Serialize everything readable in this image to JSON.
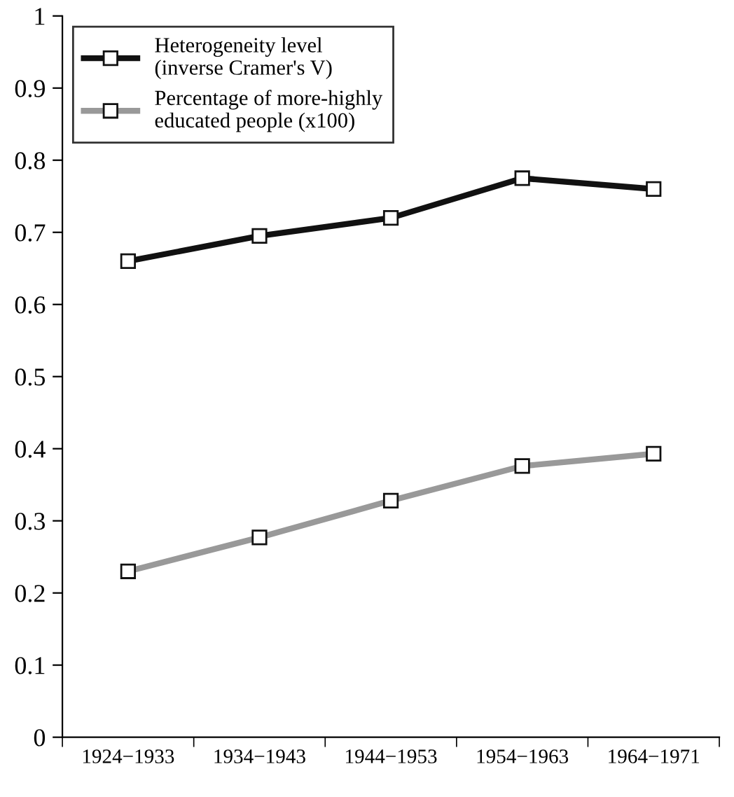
{
  "chart_data": {
    "type": "line",
    "categories": [
      "1924−1933",
      "1934−1943",
      "1944−1953",
      "1954−1963",
      "1964−1971"
    ],
    "series": [
      {
        "name": "Heterogeneity level\n(inverse Cramer's V)",
        "color": "#111111",
        "values": [
          0.66,
          0.695,
          0.72,
          0.775,
          0.76
        ]
      },
      {
        "name": "Percentage of more-highly\neducated people (x100)",
        "color": "#999999",
        "values": [
          0.23,
          0.277,
          0.328,
          0.376,
          0.393
        ]
      }
    ],
    "ylim": [
      0,
      1
    ],
    "yticks": [
      0,
      0.1,
      0.2,
      0.3,
      0.4,
      0.5,
      0.6,
      0.7,
      0.8,
      0.9,
      1
    ],
    "grid": false,
    "legend": "top left",
    "marker": "square",
    "line_style": "solid"
  }
}
